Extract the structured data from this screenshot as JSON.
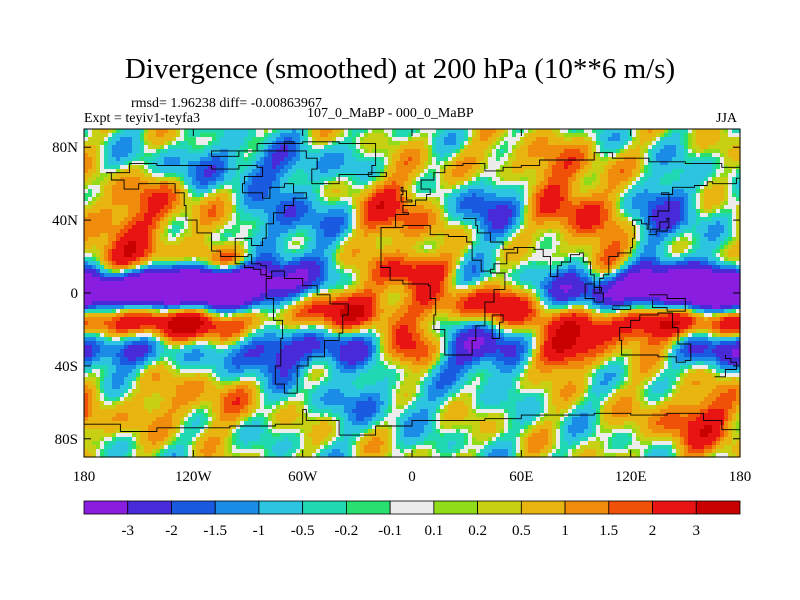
{
  "chart_data": {
    "type": "heatmap",
    "title": "Divergence (smoothed) at 200 hPa (10**6 m/s)",
    "stats_label": "rmsd= 1.96238 diff= -0.00863967",
    "experiment_label": "Expt = teyiv1-teyfa3",
    "comparison_label": "107_0_MaBP - 000_0_MaBP",
    "season_label": "JJA",
    "x_range": [
      -180,
      180
    ],
    "y_range": [
      -90,
      90
    ],
    "x_ticks": [
      {
        "value": -180,
        "label": "180"
      },
      {
        "value": -120,
        "label": "120W"
      },
      {
        "value": -60,
        "label": "60W"
      },
      {
        "value": 0,
        "label": "0"
      },
      {
        "value": 60,
        "label": "60E"
      },
      {
        "value": 120,
        "label": "120E"
      },
      {
        "value": 180,
        "label": "180"
      }
    ],
    "y_ticks": [
      {
        "value": 80,
        "label": "80N"
      },
      {
        "value": 40,
        "label": "40N"
      },
      {
        "value": 0,
        "label": "0"
      },
      {
        "value": -40,
        "label": "40S"
      },
      {
        "value": -80,
        "label": "80S"
      }
    ],
    "levels": [
      -3,
      -2,
      -1.5,
      -1,
      -0.5,
      -0.2,
      -0.1,
      0.1,
      0.2,
      0.5,
      1,
      1.5,
      2,
      3
    ],
    "level_labels": [
      "-3",
      "-2",
      "-1.5",
      "-1",
      "-0.5",
      "-0.2",
      "-0.1",
      "0.1",
      "0.2",
      "0.5",
      "1",
      "1.5",
      "2",
      "3"
    ],
    "colors": [
      "#8a1ee0",
      "#4a2ad8",
      "#1a5ae0",
      "#1a8ce8",
      "#2cc4e0",
      "#20d8b4",
      "#28e070",
      "#ececec",
      "#90dc18",
      "#c8d014",
      "#e8b410",
      "#f08c0c",
      "#f05008",
      "#e81414",
      "#c80000"
    ],
    "features": [
      {
        "lon": -150,
        "lat": 2,
        "w": 42,
        "h": 10,
        "amp": -4.2
      },
      {
        "lon": -110,
        "lat": 4,
        "w": 30,
        "h": 9,
        "amp": -3.5
      },
      {
        "lon": -75,
        "lat": 5,
        "w": 22,
        "h": 10,
        "amp": -2.2
      },
      {
        "lon": 105,
        "lat": 2,
        "w": 48,
        "h": 10,
        "amp": -4.3
      },
      {
        "lon": 165,
        "lat": 0,
        "w": 22,
        "h": 10,
        "amp": -2.8
      },
      {
        "lon": 25,
        "lat": 8,
        "w": 14,
        "h": 8,
        "amp": -3.0
      },
      {
        "lon": -160,
        "lat": 15,
        "w": 20,
        "h": 8,
        "amp": 3.6
      },
      {
        "lon": -135,
        "lat": -16,
        "w": 45,
        "h": 8,
        "amp": 4.0
      },
      {
        "lon": 130,
        "lat": -15,
        "w": 40,
        "h": 8,
        "amp": 3.6
      },
      {
        "lon": 45,
        "lat": -2,
        "w": 28,
        "h": 10,
        "amp": 4.3
      },
      {
        "lon": 10,
        "lat": 12,
        "w": 18,
        "h": 7,
        "amp": 3.2
      },
      {
        "lon": -40,
        "lat": -8,
        "w": 25,
        "h": 9,
        "amp": 2.8
      },
      {
        "lon": -100,
        "lat": 18,
        "w": 12,
        "h": 6,
        "amp": 3.2
      },
      {
        "lon": 110,
        "lat": 16,
        "w": 12,
        "h": 8,
        "amp": 2.6
      },
      {
        "lon": -80,
        "lat": -30,
        "w": 14,
        "h": 10,
        "amp": -3.2
      },
      {
        "lon": 40,
        "lat": -30,
        "w": 18,
        "h": 10,
        "amp": -3.4
      },
      {
        "lon": -40,
        "lat": -30,
        "w": 14,
        "h": 9,
        "amp": -2.5
      },
      {
        "lon": -160,
        "lat": -30,
        "w": 25,
        "h": 8,
        "amp": -2.4
      },
      {
        "lon": 170,
        "lat": -28,
        "w": 15,
        "h": 8,
        "amp": -2.2
      },
      {
        "lon": 0,
        "lat": -32,
        "w": 12,
        "h": 8,
        "amp": 2.2
      },
      {
        "lon": 80,
        "lat": -32,
        "w": 15,
        "h": 8,
        "amp": 3.0
      },
      {
        "lon": -150,
        "lat": 45,
        "w": 25,
        "h": 15,
        "amp": 1.8
      },
      {
        "lon": -10,
        "lat": 45,
        "w": 22,
        "h": 15,
        "amp": 2.0
      },
      {
        "lon": 90,
        "lat": 45,
        "w": 18,
        "h": 14,
        "amp": 2.2
      },
      {
        "lon": -60,
        "lat": 40,
        "w": 20,
        "h": 12,
        "amp": -1.8
      },
      {
        "lon": 40,
        "lat": 50,
        "w": 18,
        "h": 14,
        "amp": -2.0
      },
      {
        "lon": 140,
        "lat": 45,
        "w": 18,
        "h": 14,
        "amp": -1.8
      },
      {
        "lon": -90,
        "lat": 70,
        "w": 40,
        "h": 9,
        "amp": -1.6
      },
      {
        "lon": 60,
        "lat": 70,
        "w": 30,
        "h": 9,
        "amp": 1.4
      },
      {
        "lon": -120,
        "lat": -60,
        "w": 25,
        "h": 10,
        "amp": 1.2
      },
      {
        "lon": 160,
        "lat": -70,
        "w": 20,
        "h": 12,
        "amp": 2.2
      },
      {
        "lon": -20,
        "lat": -58,
        "w": 25,
        "h": 10,
        "amp": -1.0
      }
    ],
    "coastline_segments": [
      [
        [
          -168,
          66
        ],
        [
          -155,
          71
        ],
        [
          -140,
          70
        ],
        [
          -128,
          70
        ],
        [
          -110,
          68
        ],
        [
          -95,
          70
        ],
        [
          -85,
          69
        ],
        [
          -82,
          64
        ],
        [
          -92,
          60
        ],
        [
          -93,
          55
        ],
        [
          -82,
          52
        ],
        [
          -78,
          58
        ],
        [
          -70,
          60
        ],
        [
          -65,
          55
        ],
        [
          -58,
          52
        ],
        [
          -65,
          48
        ],
        [
          -70,
          44
        ],
        [
          -76,
          38
        ],
        [
          -80,
          30
        ],
        [
          -82,
          26
        ],
        [
          -88,
          30
        ],
        [
          -97,
          26
        ],
        [
          -97,
          20
        ],
        [
          -90,
          21
        ],
        [
          -88,
          16
        ],
        [
          -83,
          15
        ],
        [
          -80,
          9
        ],
        [
          -77,
          8
        ]
      ],
      [
        [
          -77,
          8
        ],
        [
          -80,
          5
        ],
        [
          -80,
          -3
        ],
        [
          -76,
          -15
        ],
        [
          -71,
          -25
        ],
        [
          -72,
          -40
        ],
        [
          -75,
          -50
        ],
        [
          -70,
          -55
        ],
        [
          -66,
          -55
        ],
        [
          -63,
          -40
        ],
        [
          -57,
          -35
        ],
        [
          -48,
          -26
        ],
        [
          -40,
          -22
        ],
        [
          -38,
          -12
        ],
        [
          -35,
          -6
        ],
        [
          -45,
          -1
        ],
        [
          -52,
          4
        ],
        [
          -60,
          8
        ],
        [
          -70,
          12
        ],
        [
          -77,
          8
        ]
      ],
      [
        [
          -168,
          66
        ],
        [
          -165,
          62
        ],
        [
          -158,
          57
        ],
        [
          -150,
          60
        ],
        [
          -140,
          60
        ],
        [
          -130,
          55
        ],
        [
          -125,
          48
        ],
        [
          -124,
          40
        ],
        [
          -118,
          33
        ],
        [
          -110,
          23
        ],
        [
          -105,
          20
        ],
        [
          -97,
          16
        ],
        [
          -92,
          14
        ],
        [
          -87,
          13
        ],
        [
          -83,
          10
        ],
        [
          -80,
          9
        ]
      ],
      [
        [
          -10,
          36
        ],
        [
          -17,
          21
        ],
        [
          -17,
          14
        ],
        [
          -12,
          7
        ],
        [
          -5,
          5
        ],
        [
          5,
          5
        ],
        [
          9,
          4
        ],
        [
          10,
          -3
        ],
        [
          13,
          -12
        ],
        [
          12,
          -20
        ],
        [
          18,
          -34
        ],
        [
          25,
          -34
        ],
        [
          33,
          -26
        ],
        [
          35,
          -18
        ],
        [
          40,
          -12
        ],
        [
          40,
          -5
        ],
        [
          45,
          2
        ],
        [
          51,
          11
        ],
        [
          43,
          12
        ],
        [
          38,
          18
        ],
        [
          33,
          28
        ],
        [
          30,
          31
        ],
        [
          20,
          32
        ],
        [
          10,
          37
        ],
        [
          -5,
          36
        ],
        [
          -10,
          36
        ]
      ],
      [
        [
          -10,
          36
        ],
        [
          -9,
          43
        ],
        [
          -2,
          44
        ],
        [
          -5,
          48
        ],
        [
          2,
          51
        ],
        [
          8,
          54
        ],
        [
          10,
          57
        ],
        [
          5,
          62
        ],
        [
          12,
          66
        ],
        [
          18,
          70
        ],
        [
          28,
          71
        ],
        [
          40,
          67
        ],
        [
          50,
          69
        ],
        [
          60,
          70
        ],
        [
          70,
          73
        ],
        [
          80,
          73
        ],
        [
          100,
          77
        ],
        [
          110,
          74
        ],
        [
          130,
          72
        ],
        [
          150,
          71
        ],
        [
          170,
          69
        ],
        [
          180,
          66
        ]
      ],
      [
        [
          28,
          41
        ],
        [
          35,
          37
        ],
        [
          36,
          33
        ],
        [
          43,
          28
        ],
        [
          50,
          24
        ],
        [
          56,
          25
        ],
        [
          58,
          22
        ],
        [
          52,
          16
        ],
        [
          45,
          13
        ],
        [
          43,
          12
        ]
      ],
      [
        [
          56,
          25
        ],
        [
          62,
          25
        ],
        [
          67,
          24
        ],
        [
          72,
          20
        ],
        [
          76,
          9
        ],
        [
          80,
          15
        ],
        [
          82,
          17
        ],
        [
          87,
          21
        ],
        [
          92,
          22
        ],
        [
          94,
          17
        ],
        [
          98,
          10
        ],
        [
          100,
          3
        ],
        [
          104,
          1
        ],
        [
          103,
          8
        ],
        [
          105,
          10
        ],
        [
          108,
          15
        ],
        [
          108,
          20
        ],
        [
          113,
          22
        ],
        [
          120,
          25
        ],
        [
          121,
          30
        ],
        [
          122,
          37
        ],
        [
          121,
          40
        ],
        [
          126,
          38
        ],
        [
          129,
          35
        ],
        [
          130,
          42
        ],
        [
          135,
          45
        ],
        [
          141,
          50
        ],
        [
          141,
          55
        ],
        [
          137,
          54
        ],
        [
          143,
          58
        ],
        [
          155,
          59
        ],
        [
          162,
          61
        ],
        [
          165,
          60
        ],
        [
          178,
          63
        ],
        [
          180,
          65
        ]
      ],
      [
        [
          114,
          -22
        ],
        [
          114,
          -26
        ],
        [
          115,
          -34
        ],
        [
          125,
          -34
        ],
        [
          135,
          -35
        ],
        [
          138,
          -35
        ],
        [
          145,
          -38
        ],
        [
          150,
          -37
        ],
        [
          153,
          -28
        ],
        [
          146,
          -19
        ],
        [
          143,
          -11
        ],
        [
          135,
          -12
        ],
        [
          130,
          -12
        ],
        [
          125,
          -15
        ],
        [
          120,
          -19
        ],
        [
          114,
          -22
        ]
      ],
      [
        [
          95,
          5
        ],
        [
          100,
          0
        ],
        [
          105,
          -5
        ],
        [
          100,
          -3
        ],
        [
          95,
          5
        ]
      ],
      [
        [
          110,
          -7
        ],
        [
          120,
          -9
        ],
        [
          110,
          -8
        ]
      ],
      [
        [
          130,
          -1
        ],
        [
          140,
          -3
        ],
        [
          150,
          -10
        ],
        [
          140,
          -8
        ],
        [
          132,
          -4
        ]
      ],
      [
        [
          166,
          -46
        ],
        [
          172,
          -42
        ],
        [
          178,
          -38
        ],
        [
          175,
          -36
        ],
        [
          172,
          -34
        ]
      ],
      [
        [
          -180,
          -72
        ],
        [
          -160,
          -76
        ],
        [
          -140,
          -74
        ],
        [
          -100,
          -73
        ],
        [
          -75,
          -72
        ],
        [
          -60,
          -64
        ],
        [
          -58,
          -70
        ],
        [
          -40,
          -78
        ],
        [
          -20,
          -73
        ],
        [
          0,
          -70
        ],
        [
          20,
          -70
        ],
        [
          40,
          -69
        ],
        [
          60,
          -67
        ],
        [
          80,
          -67
        ],
        [
          100,
          -66
        ],
        [
          120,
          -67
        ],
        [
          140,
          -66
        ],
        [
          160,
          -70
        ],
        [
          170,
          -75
        ],
        [
          180,
          -78
        ]
      ],
      [
        [
          -55,
          60
        ],
        [
          -45,
          60
        ],
        [
          -40,
          65
        ],
        [
          -22,
          70
        ],
        [
          -20,
          75
        ],
        [
          -20,
          82
        ],
        [
          -40,
          83
        ],
        [
          -60,
          82
        ],
        [
          -70,
          78
        ],
        [
          -58,
          74
        ],
        [
          -52,
          68
        ],
        [
          -55,
          60
        ]
      ],
      [
        [
          -6,
          50
        ],
        [
          0,
          51
        ],
        [
          -3,
          56
        ],
        [
          -6,
          58
        ],
        [
          -5,
          54
        ],
        [
          -6,
          50
        ]
      ],
      [
        [
          -24,
          64
        ],
        [
          -14,
          64
        ],
        [
          -14,
          66
        ],
        [
          -22,
          66
        ],
        [
          -24,
          64
        ]
      ],
      [
        [
          130,
          32
        ],
        [
          134,
          34
        ],
        [
          140,
          36
        ],
        [
          141,
          41
        ],
        [
          140,
          39
        ],
        [
          136,
          35
        ],
        [
          131,
          33
        ]
      ],
      [
        [
          44,
          -12
        ],
        [
          50,
          -16
        ],
        [
          48,
          -25
        ],
        [
          44,
          -24
        ],
        [
          44,
          -12
        ]
      ],
      [
        [
          -85,
          82
        ],
        [
          -65,
          83
        ],
        [
          -70,
          78
        ],
        [
          -95,
          75
        ],
        [
          -110,
          78
        ],
        [
          -85,
          82
        ]
      ]
    ]
  }
}
